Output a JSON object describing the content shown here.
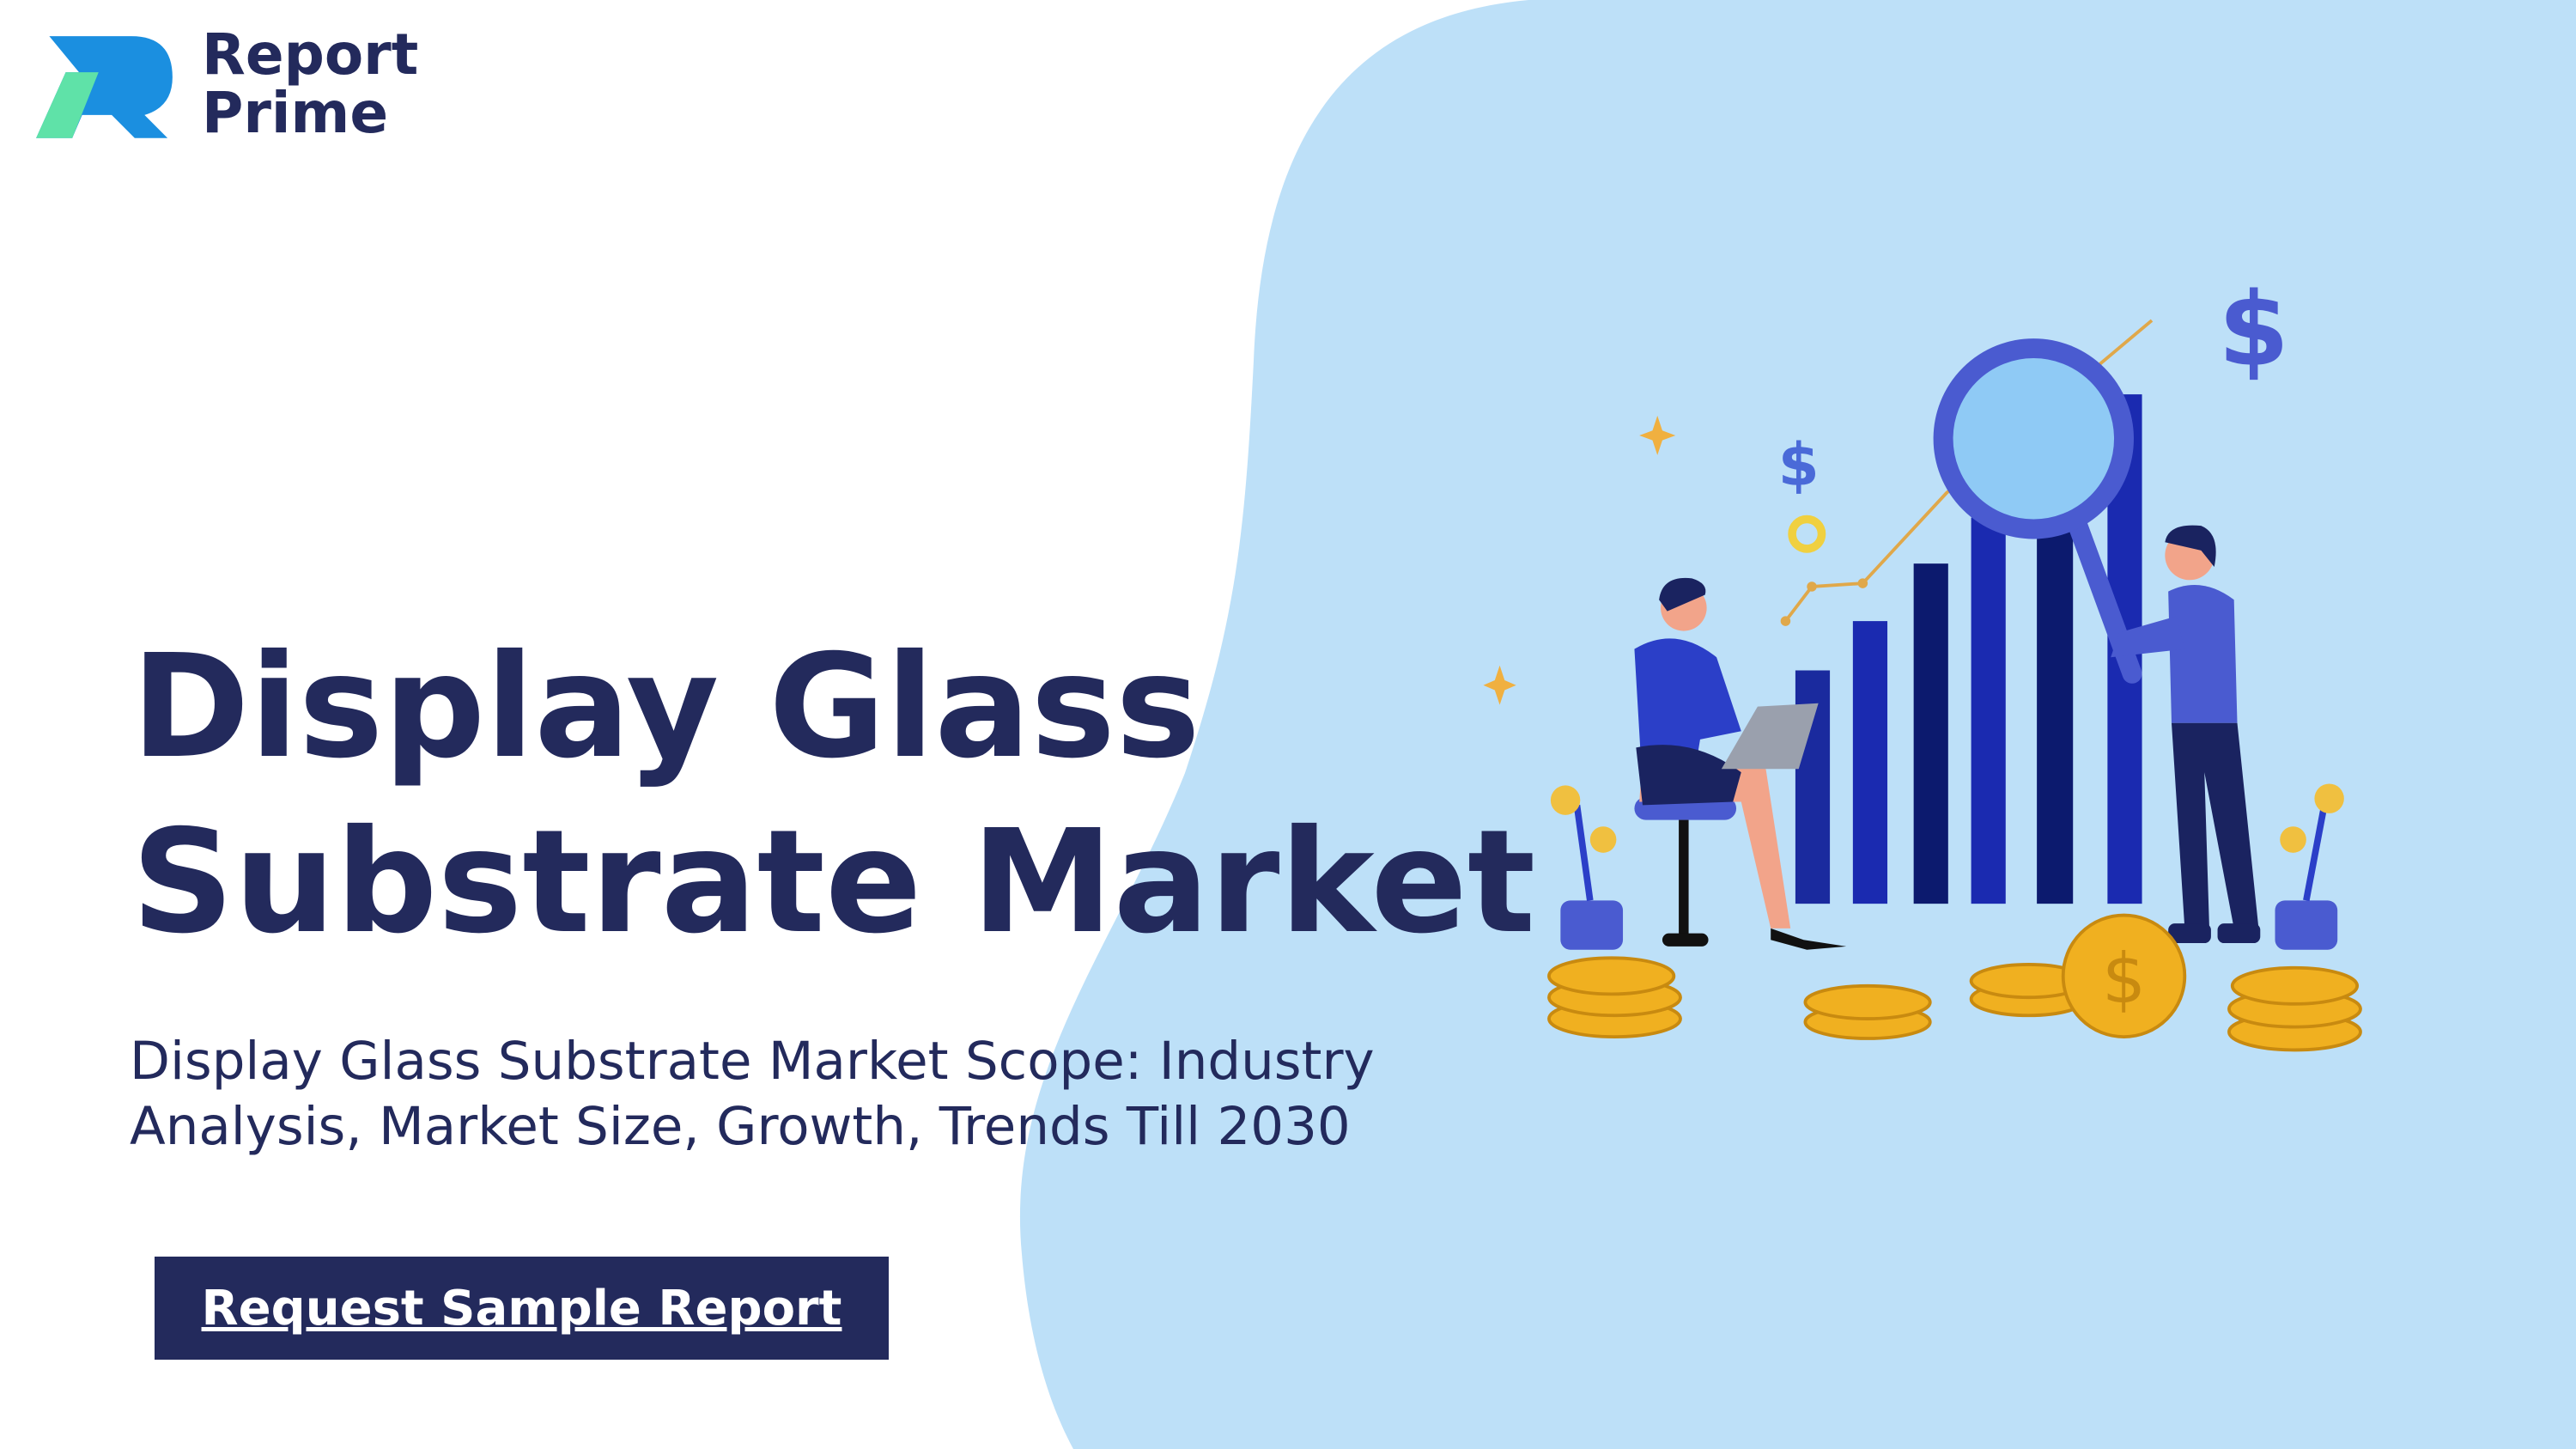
{
  "logo": {
    "line1": "Report",
    "line2": "Prime"
  },
  "hero": {
    "title": "Display Glass Substrate Market",
    "subtitle": "Display Glass Substrate Market Scope: Industry Analysis, Market Size, Growth, Trends Till 2030",
    "button": "Request Sample Report"
  }
}
